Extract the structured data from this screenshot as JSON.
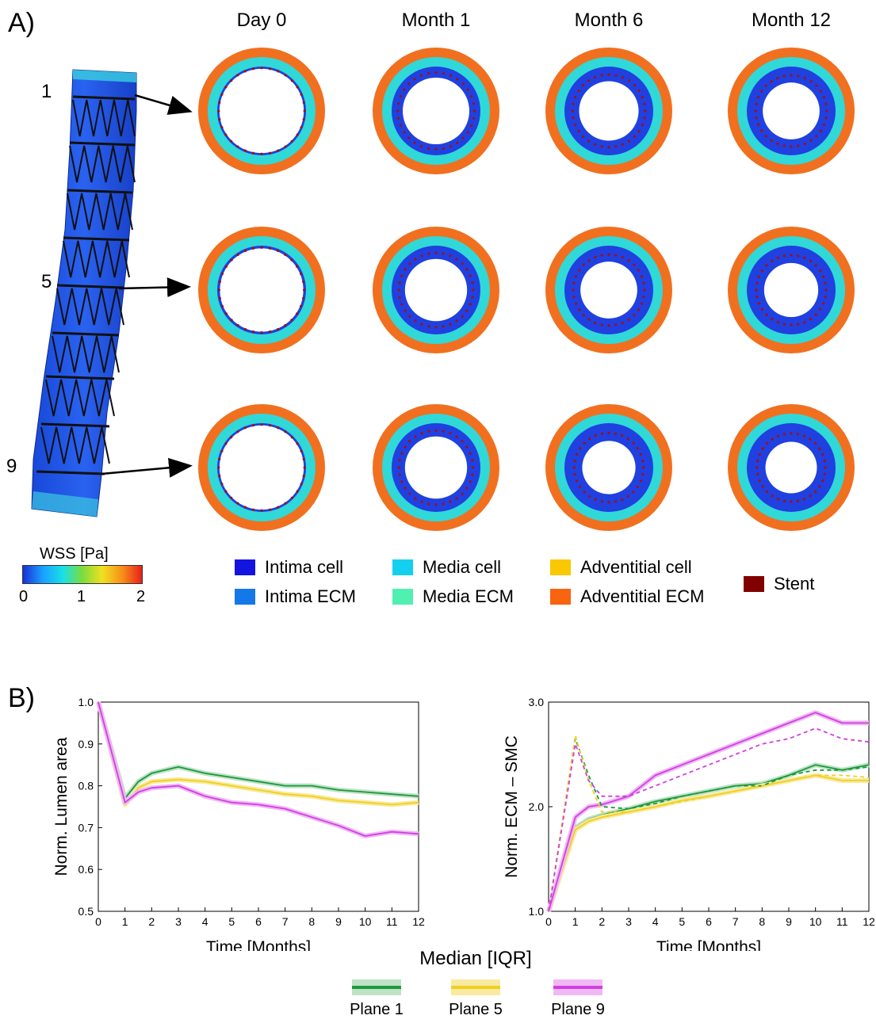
{
  "panel_a": {
    "label": "A)",
    "columns": [
      "Day 0",
      "Month 1",
      "Month 6",
      "Month 12"
    ],
    "plane_numbers": [
      "1",
      "5",
      "9"
    ],
    "colorbar": {
      "title": "WSS [Pa]",
      "ticks": [
        "0",
        "1",
        "2"
      ]
    },
    "legend": [
      {
        "label": "Intima cell",
        "color": "#1414e0"
      },
      {
        "label": "Intima ECM",
        "color": "#1478e8"
      },
      {
        "label": "Media cell",
        "color": "#14d0f0"
      },
      {
        "label": "Media ECM",
        "color": "#50f0b0"
      },
      {
        "label": "Adventitial cell",
        "color": "#f8c800"
      },
      {
        "label": "Adventitial ECM",
        "color": "#f86410"
      },
      {
        "label": "Stent",
        "color": "#800000"
      }
    ],
    "rings": {
      "media_color": "#30d8d8",
      "adventitia_color": "#f07020",
      "intima_color": "#2040e0",
      "stent_color": "#a01010",
      "intima_thickness": [
        [
          0.05,
          0.25,
          0.33,
          0.36
        ],
        [
          0.06,
          0.3,
          0.36,
          0.39
        ],
        [
          0.05,
          0.3,
          0.4,
          0.42
        ]
      ]
    }
  },
  "panel_b": {
    "label": "B)",
    "legend_title": "Median [IQR]",
    "planes": [
      {
        "name": "Plane 1",
        "color": "#1a9a3a",
        "band": "#bfe2c7"
      },
      {
        "name": "Plane 5",
        "color": "#f0d020",
        "band": "#f8eaa0"
      },
      {
        "name": "Plane 9",
        "color": "#d040e0",
        "band": "#f0b8f4"
      }
    ]
  },
  "chart_data": [
    {
      "type": "line",
      "xlabel": "Time [Months]",
      "ylabel": "Norm. Lumen area",
      "xlim": [
        0,
        12
      ],
      "ylim": [
        0.5,
        1.0
      ],
      "xticks": [
        "0",
        "1",
        "2",
        "3",
        "4",
        "5",
        "6",
        "7",
        "8",
        "9",
        "10",
        "11",
        "12"
      ],
      "yticks": [
        "0.5",
        "0.6",
        "0.7",
        "0.8",
        "0.9",
        "1.0"
      ],
      "x": [
        0,
        1,
        1.5,
        2,
        3,
        4,
        5,
        6,
        7,
        8,
        9,
        10,
        11,
        12
      ],
      "series": [
        {
          "name": "Plane 1",
          "style": "solid",
          "values": [
            1.0,
            0.77,
            0.81,
            0.83,
            0.845,
            0.83,
            0.82,
            0.81,
            0.8,
            0.8,
            0.79,
            0.785,
            0.78,
            0.775
          ]
        },
        {
          "name": "Plane 5",
          "style": "solid",
          "values": [
            1.0,
            0.755,
            0.795,
            0.81,
            0.815,
            0.81,
            0.8,
            0.79,
            0.78,
            0.775,
            0.765,
            0.76,
            0.755,
            0.76
          ]
        },
        {
          "name": "Plane 9",
          "style": "solid",
          "values": [
            1.0,
            0.76,
            0.785,
            0.795,
            0.8,
            0.775,
            0.76,
            0.755,
            0.745,
            0.725,
            0.705,
            0.68,
            0.69,
            0.685
          ]
        }
      ]
    },
    {
      "type": "line",
      "xlabel": "Time [Months]",
      "ylabel": "Norm. ECM – SMC",
      "xlim": [
        0,
        12
      ],
      "ylim": [
        1.0,
        3.0
      ],
      "xticks": [
        "0",
        "1",
        "2",
        "3",
        "4",
        "5",
        "6",
        "7",
        "8",
        "9",
        "10",
        "11",
        "12"
      ],
      "yticks": [
        "1.0",
        "2.0",
        "3.0"
      ],
      "x": [
        0,
        1,
        1.5,
        2,
        3,
        4,
        5,
        6,
        7,
        8,
        9,
        10,
        11,
        12
      ],
      "series": [
        {
          "name": "Plane 1",
          "style": "solid",
          "values": [
            1.0,
            1.8,
            1.88,
            1.92,
            1.98,
            2.05,
            2.1,
            2.15,
            2.2,
            2.22,
            2.3,
            2.4,
            2.35,
            2.4
          ]
        },
        {
          "name": "Plane 5",
          "style": "solid",
          "values": [
            1.0,
            1.78,
            1.86,
            1.9,
            1.95,
            2.0,
            2.06,
            2.1,
            2.15,
            2.2,
            2.25,
            2.3,
            2.25,
            2.25
          ]
        },
        {
          "name": "Plane 9",
          "style": "solid",
          "values": [
            1.0,
            1.9,
            2.0,
            2.02,
            2.1,
            2.3,
            2.4,
            2.5,
            2.6,
            2.7,
            2.8,
            2.9,
            2.8,
            2.8
          ]
        },
        {
          "name": "Plane 1",
          "style": "dashed",
          "values": [
            1.0,
            2.65,
            2.3,
            2.0,
            1.98,
            2.03,
            2.1,
            2.15,
            2.2,
            2.2,
            2.3,
            2.35,
            2.35,
            2.38
          ]
        },
        {
          "name": "Plane 5",
          "style": "dashed",
          "values": [
            1.0,
            2.68,
            2.25,
            1.95,
            1.95,
            2.0,
            2.05,
            2.1,
            2.15,
            2.2,
            2.25,
            2.3,
            2.3,
            2.28
          ]
        },
        {
          "name": "Plane 9",
          "style": "dashed",
          "values": [
            1.0,
            2.6,
            2.25,
            2.1,
            2.1,
            2.2,
            2.3,
            2.4,
            2.5,
            2.6,
            2.65,
            2.75,
            2.65,
            2.62
          ]
        }
      ]
    }
  ]
}
